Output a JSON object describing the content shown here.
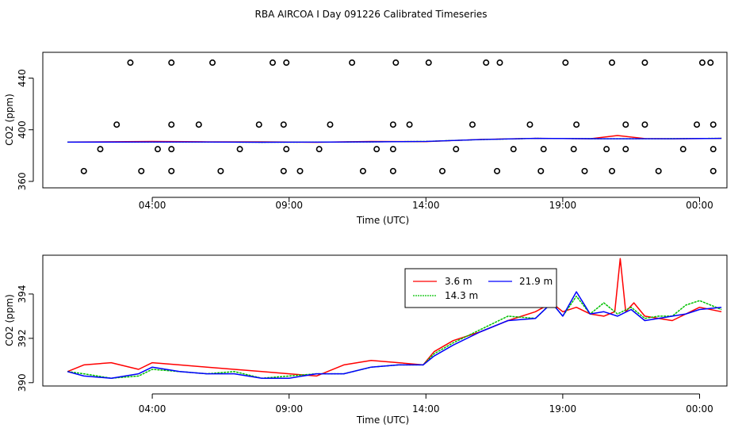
{
  "figure_title": "RBA AIRCOA I  Day 091226  Calibrated Timeseries",
  "colors": {
    "red": "#ff0000",
    "green": "#00c000",
    "blue": "#0000ff",
    "black": "#000000"
  },
  "chart_data": [
    {
      "type": "line+scatter",
      "title": "",
      "xlabel": "Time (UTC)",
      "ylabel": "CO2 (ppm)",
      "xlim_hours": [
        0.0,
        25.0
      ],
      "ylim": [
        355,
        460
      ],
      "xticks": [
        {
          "hour": 4,
          "label": "04:00"
        },
        {
          "hour": 9,
          "label": "09:00"
        },
        {
          "hour": 14,
          "label": "14:00"
        },
        {
          "hour": 19,
          "label": "19:00"
        },
        {
          "hour": 24,
          "label": "00:00"
        }
      ],
      "yticks": [
        360,
        400,
        440
      ],
      "scatter_markers": {
        "symbol": "open-circle",
        "levels": [
          {
            "y": 368,
            "x": [
              1.5,
              3.6,
              4.7,
              6.5,
              8.8,
              9.4,
              11.7,
              12.8,
              14.6,
              16.6,
              18.2,
              19.8,
              20.8,
              22.5,
              24.5
            ]
          },
          {
            "y": 385,
            "x": [
              2.1,
              4.2,
              4.7,
              7.2,
              8.9,
              10.1,
              12.2,
              12.8,
              15.1,
              17.2,
              18.3,
              19.4,
              20.6,
              21.3,
              23.4,
              24.5
            ]
          },
          {
            "y": 404,
            "x": [
              2.7,
              4.7,
              5.7,
              7.9,
              8.8,
              10.5,
              12.8,
              13.4,
              15.7,
              17.8,
              19.5,
              21.3,
              22.0,
              23.9,
              24.5
            ]
          },
          {
            "y": 452,
            "x": [
              3.2,
              4.7,
              6.2,
              8.4,
              8.9,
              11.3,
              12.9,
              14.1,
              16.2,
              16.7,
              19.1,
              20.8,
              22.0,
              24.1,
              24.4
            ]
          }
        ]
      },
      "series": [
        {
          "name": "3.6 m",
          "color": "#ff0000",
          "x": [
            0.9,
            4,
            6,
            8,
            10,
            12,
            14,
            16,
            18,
            20,
            21,
            22,
            23,
            24.8
          ],
          "y": [
            390.5,
            390.9,
            390.7,
            390.6,
            390.3,
            390.9,
            390.8,
            392.5,
            393.3,
            393.0,
            395.5,
            393.2,
            393.0,
            393.3
          ]
        },
        {
          "name": "14.3 m",
          "color": "#00c000",
          "x": [
            0.9,
            4,
            6,
            8,
            10,
            12,
            14,
            16,
            18,
            20,
            22,
            23,
            24.8
          ],
          "y": [
            390.4,
            390.5,
            390.5,
            390.3,
            390.4,
            390.6,
            391.0,
            392.4,
            393.3,
            393.1,
            393.0,
            393.1,
            393.4
          ]
        },
        {
          "name": "21.9 m",
          "color": "#0000ff",
          "x": [
            0.9,
            4,
            6,
            8,
            10,
            12,
            14,
            16,
            18,
            20,
            22,
            23,
            24.8
          ],
          "y": [
            390.4,
            390.5,
            390.5,
            390.3,
            390.4,
            390.6,
            391.0,
            392.4,
            393.3,
            393.1,
            393.0,
            393.0,
            393.3
          ]
        }
      ]
    },
    {
      "type": "line",
      "title": "",
      "xlabel": "Time (UTC)",
      "ylabel": "CO2 (ppm)",
      "xlim_hours": [
        0.0,
        25.0
      ],
      "ylim": [
        389.85,
        395.75
      ],
      "xticks": [
        {
          "hour": 4,
          "label": "04:00"
        },
        {
          "hour": 9,
          "label": "09:00"
        },
        {
          "hour": 14,
          "label": "14:00"
        },
        {
          "hour": 19,
          "label": "19:00"
        },
        {
          "hour": 24,
          "label": "00:00"
        }
      ],
      "yticks": [
        390,
        392,
        394
      ],
      "legend_position": "top-center",
      "series": [
        {
          "name": "3.6 m",
          "color": "#ff0000",
          "x": [
            0.9,
            1.5,
            2.5,
            3.5,
            4.0,
            5.0,
            6.0,
            7.0,
            8.0,
            9.0,
            10.0,
            11.0,
            12.0,
            13.0,
            13.9,
            14.3,
            15.0,
            16.0,
            17.0,
            18.0,
            18.6,
            19.0,
            19.5,
            20.0,
            20.5,
            20.9,
            21.1,
            21.3,
            21.6,
            22.0,
            23.0,
            24.0,
            24.8
          ],
          "y": [
            390.5,
            390.8,
            390.9,
            390.6,
            390.9,
            390.8,
            390.7,
            390.6,
            390.5,
            390.4,
            390.3,
            390.8,
            391.0,
            390.9,
            390.8,
            391.4,
            391.9,
            392.3,
            392.8,
            393.2,
            393.6,
            393.2,
            393.4,
            393.1,
            393.0,
            393.2,
            395.6,
            393.2,
            393.6,
            393.0,
            392.8,
            393.4,
            393.2
          ]
        },
        {
          "name": "14.3 m",
          "color": "#00c000",
          "x": [
            0.9,
            1.5,
            2.5,
            3.5,
            4.0,
            5.0,
            6.0,
            7.0,
            8.0,
            9.0,
            10.0,
            11.0,
            12.0,
            13.0,
            13.9,
            14.3,
            15.0,
            16.0,
            17.0,
            18.0,
            18.6,
            19.0,
            19.5,
            20.0,
            20.5,
            21.0,
            21.5,
            22.0,
            22.5,
            23.0,
            23.5,
            24.0,
            24.8
          ],
          "y": [
            390.5,
            390.4,
            390.2,
            390.3,
            390.6,
            390.5,
            390.4,
            390.5,
            390.2,
            390.3,
            390.4,
            390.4,
            390.7,
            390.8,
            390.8,
            391.3,
            391.8,
            392.4,
            393.0,
            392.9,
            393.6,
            393.0,
            393.9,
            393.1,
            393.6,
            393.1,
            393.4,
            392.9,
            393.0,
            393.0,
            393.5,
            393.7,
            393.3
          ]
        },
        {
          "name": "21.9 m",
          "color": "#0000ff",
          "x": [
            0.9,
            1.5,
            2.5,
            3.5,
            4.0,
            5.0,
            6.0,
            7.0,
            8.0,
            9.0,
            10.0,
            11.0,
            12.0,
            13.0,
            13.9,
            14.3,
            15.0,
            16.0,
            17.0,
            18.0,
            18.6,
            19.0,
            19.5,
            20.0,
            20.5,
            21.0,
            21.5,
            22.0,
            22.5,
            23.0,
            23.5,
            24.0,
            24.8
          ],
          "y": [
            390.5,
            390.3,
            390.2,
            390.4,
            390.7,
            390.5,
            390.4,
            390.4,
            390.2,
            390.2,
            390.4,
            390.4,
            390.7,
            390.8,
            390.8,
            391.2,
            391.7,
            392.3,
            392.8,
            392.9,
            393.6,
            393.0,
            394.1,
            393.1,
            393.2,
            393.0,
            393.3,
            392.8,
            392.9,
            393.0,
            393.1,
            393.3,
            393.4
          ]
        }
      ]
    }
  ]
}
